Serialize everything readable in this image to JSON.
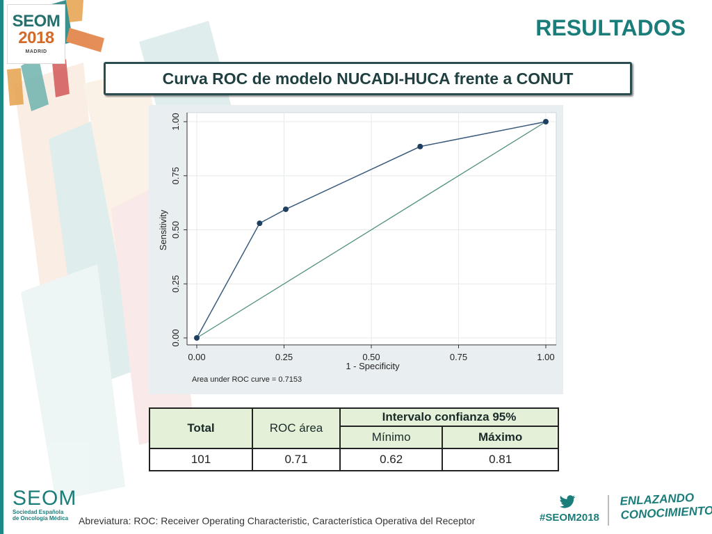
{
  "header": {
    "logo_word": "SEOM",
    "logo_year": "2018",
    "logo_city": "MADRID",
    "title": "RESULTADOS"
  },
  "subtitle": "Curva ROC de modelo NUCADI-HUCA frente a CONUT",
  "colors": {
    "brand_teal": "#1b7d7a",
    "roc_line": "#3a5b7e",
    "reference_line": "#4f8f7e",
    "table_header_bg": "#e4f1d8",
    "chart_panel_bg": "#e9eef0"
  },
  "chart_data": {
    "type": "line",
    "xlabel": "1 - Specificity",
    "ylabel": "Sensitivity",
    "xlim": [
      0,
      1
    ],
    "ylim": [
      0,
      1
    ],
    "x_ticks": [
      "0.00",
      "0.25",
      "0.50",
      "0.75",
      "1.00"
    ],
    "y_ticks": [
      "0.00",
      "0.25",
      "0.50",
      "0.75",
      "1.00"
    ],
    "grid": true,
    "annotation": "Area under ROC curve = 0.7153",
    "series": [
      {
        "points": [
          [
            0,
            0
          ],
          [
            0.18,
            0.53
          ],
          [
            0.255,
            0.595
          ],
          [
            0.64,
            0.885
          ],
          [
            1,
            1
          ]
        ],
        "markers": true
      },
      {
        "points": [
          [
            0,
            0
          ],
          [
            1,
            1
          ]
        ],
        "markers": false
      }
    ]
  },
  "table": {
    "headers": {
      "total": "Total",
      "roc_area": "ROC área",
      "ci": "Intervalo confianza 95%",
      "min": "Mínimo",
      "max": "Máximo"
    },
    "row": {
      "total": "101",
      "roc_area": "0.71",
      "min": "0.62",
      "max": "0.81"
    }
  },
  "footer": {
    "seom_word": "SEOM",
    "seom_sub_1": "Sociedad Española",
    "seom_sub_2": "de Oncología Médica",
    "abbreviation": "Abreviatura: ROC: Receiver Operating Characteristic, Característica Operativa del Receptor",
    "hashtag": "#SEOM2018",
    "slogan_1": "ENLAZANDO",
    "slogan_2": "CONOCIMIENTO",
    "twitter_icon": "twitter-bird-icon"
  }
}
